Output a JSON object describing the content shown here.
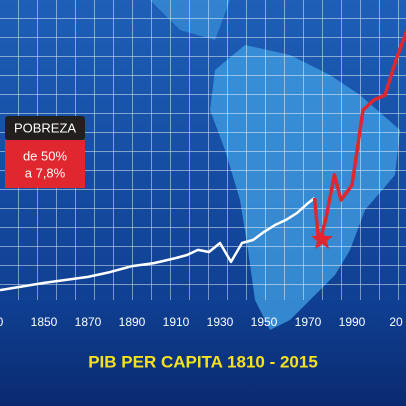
{
  "chart_data": {
    "type": "line",
    "title": "PIB PER CAPITA 1810 - 2015",
    "xlim": [
      1830,
      2015
    ],
    "ylim": [
      0,
      100
    ],
    "xticks": [
      {
        "value": 1830,
        "label": "0"
      },
      1850,
      1870,
      1890,
      1910,
      1930,
      1950,
      1970,
      1990,
      {
        "value": 2010,
        "label": "20"
      }
    ],
    "series": [
      {
        "color": "#ffffff",
        "x": [
          1830,
          1850,
          1870,
          1880,
          1890,
          1900,
          1910,
          1915,
          1920,
          1925,
          1930,
          1935,
          1940,
          1945,
          1950,
          1955,
          1960,
          1965,
          1970,
          1973
        ],
        "values": [
          3.3,
          5.7,
          7.7,
          9.3,
          11.3,
          12.3,
          14,
          15,
          16.7,
          16,
          19,
          12.7,
          19,
          20,
          22.7,
          25,
          26.7,
          29,
          32.3,
          34
        ]
      },
      {
        "color": "#e0262e",
        "x": [
          1973,
          1975,
          1978,
          1982,
          1985,
          1990,
          1995,
          2000,
          2005,
          2010,
          2015
        ],
        "values": [
          34,
          18.3,
          26.7,
          41.7,
          33.3,
          38.3,
          63.3,
          66.7,
          68.3,
          80,
          90
        ]
      }
    ],
    "box": {
      "title": "POBREZA",
      "line1": "de 50%",
      "line2": "a 7,8%"
    }
  }
}
